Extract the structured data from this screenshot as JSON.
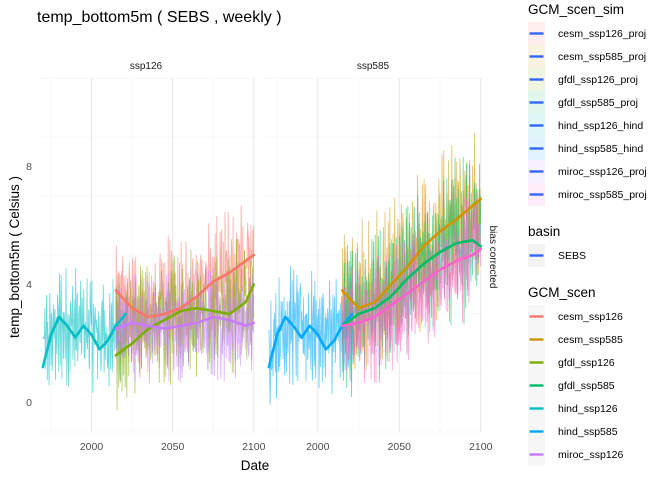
{
  "chart_data": {
    "type": "line",
    "title": "temp_bottom5m ( SEBS , weekly )",
    "xlabel": "Date",
    "ylabel": "temp_bottom5m ( Celsius )",
    "xlim": [
      1967,
      2102
    ],
    "ylim": [
      -1.0,
      11.0
    ],
    "x_ticks": [
      2000,
      2050,
      2100
    ],
    "y_ticks": [
      0,
      4,
      8
    ],
    "grid": true,
    "facet_row_label": "bias corrected",
    "panels": [
      {
        "label": "ssp126",
        "raw_series": [
          {
            "name": "hind_ssp126",
            "color": "#00BFC4",
            "x_range": [
              1970,
              2022
            ],
            "center": [
              [
                1970,
                1.8
              ],
              [
                1980,
                2.6
              ],
              [
                1990,
                2.6
              ],
              [
                2000,
                2.4
              ],
              [
                2010,
                2.3
              ],
              [
                2022,
                2.6
              ]
            ],
            "amp": 1.6
          },
          {
            "name": "cesm_ssp126",
            "color": "#F8766D",
            "x_range": [
              2015,
              2100
            ],
            "center": [
              [
                2015,
                3.3
              ],
              [
                2030,
                3.0
              ],
              [
                2050,
                3.4
              ],
              [
                2070,
                3.9
              ],
              [
                2085,
                4.3
              ],
              [
                2100,
                4.9
              ]
            ],
            "amp": 1.8
          },
          {
            "name": "gfdl_ssp126",
            "color": "#7CAE00",
            "x_range": [
              2015,
              2100
            ],
            "center": [
              [
                2015,
                2.0
              ],
              [
                2030,
                2.4
              ],
              [
                2050,
                2.9
              ],
              [
                2070,
                3.1
              ],
              [
                2085,
                3.2
              ],
              [
                2100,
                3.6
              ]
            ],
            "amp": 1.8
          },
          {
            "name": "miroc_ssp126",
            "color": "#C77CFF",
            "x_range": [
              2015,
              2100
            ],
            "center": [
              [
                2015,
                2.5
              ],
              [
                2030,
                2.5
              ],
              [
                2050,
                2.6
              ],
              [
                2070,
                2.7
              ],
              [
                2085,
                2.6
              ],
              [
                2100,
                2.6
              ]
            ],
            "amp": 1.5
          }
        ],
        "smooth_series": [
          {
            "name": "hind_ssp126",
            "color": "#00BFC4",
            "x": [
              1970,
              1975,
              1980,
              1985,
              1990,
              1995,
              2000,
              2005,
              2010,
              2015,
              2021
            ],
            "y": [
              1.2,
              2.3,
              2.9,
              2.6,
              2.2,
              2.6,
              2.3,
              1.8,
              2.1,
              2.6,
              3.0
            ]
          },
          {
            "name": "cesm_ssp126",
            "color": "#F8766D",
            "x": [
              2015,
              2025,
              2035,
              2045,
              2055,
              2065,
              2075,
              2085,
              2100
            ],
            "y": [
              3.8,
              3.2,
              2.9,
              3.0,
              3.2,
              3.6,
              4.1,
              4.4,
              5.0
            ]
          },
          {
            "name": "gfdl_ssp126",
            "color": "#7CAE00",
            "x": [
              2015,
              2025,
              2035,
              2045,
              2055,
              2065,
              2075,
              2085,
              2095,
              2100
            ],
            "y": [
              1.6,
              2.0,
              2.5,
              2.8,
              3.1,
              3.2,
              3.1,
              3.0,
              3.4,
              4.0
            ]
          },
          {
            "name": "miroc_ssp126",
            "color": "#C77CFF",
            "x": [
              2015,
              2025,
              2035,
              2045,
              2055,
              2065,
              2075,
              2085,
              2095,
              2100
            ],
            "y": [
              2.5,
              2.7,
              2.6,
              2.5,
              2.6,
              2.7,
              2.9,
              2.8,
              2.6,
              2.7
            ]
          }
        ]
      },
      {
        "label": "ssp585",
        "raw_series": [
          {
            "name": "hind_ssp585",
            "color": "#00A9FF",
            "x_range": [
              1970,
              2022
            ],
            "center": [
              [
                1970,
                1.8
              ],
              [
                1980,
                2.6
              ],
              [
                1990,
                2.6
              ],
              [
                2000,
                2.4
              ],
              [
                2010,
                2.3
              ],
              [
                2022,
                2.6
              ]
            ],
            "amp": 1.6
          },
          {
            "name": "cesm_ssp585",
            "color": "#CD9600",
            "x_range": [
              2015,
              2100
            ],
            "center": [
              [
                2015,
                3.4
              ],
              [
                2030,
                3.4
              ],
              [
                2050,
                4.4
              ],
              [
                2070,
                5.4
              ],
              [
                2085,
                6.2
              ],
              [
                2100,
                7.0
              ]
            ],
            "amp": 2.2
          },
          {
            "name": "gfdl_ssp585",
            "color": "#00BE67",
            "x_range": [
              2015,
              2100
            ],
            "center": [
              [
                2015,
                2.6
              ],
              [
                2030,
                3.0
              ],
              [
                2050,
                4.0
              ],
              [
                2070,
                5.0
              ],
              [
                2085,
                5.5
              ],
              [
                2100,
                5.4
              ]
            ],
            "amp": 2.2
          },
          {
            "name": "miroc_ssp585",
            "color": "#FF61CC",
            "x_range": [
              2015,
              2100
            ],
            "center": [
              [
                2015,
                2.7
              ],
              [
                2030,
                2.7
              ],
              [
                2050,
                3.2
              ],
              [
                2070,
                4.0
              ],
              [
                2085,
                4.6
              ],
              [
                2100,
                5.2
              ]
            ],
            "amp": 1.7
          }
        ],
        "smooth_series": [
          {
            "name": "hind_ssp585",
            "color": "#00A9FF",
            "x": [
              1970,
              1975,
              1980,
              1985,
              1990,
              1995,
              2000,
              2005,
              2010,
              2015,
              2021
            ],
            "y": [
              1.2,
              2.3,
              2.9,
              2.6,
              2.2,
              2.6,
              2.3,
              1.8,
              2.1,
              2.6,
              3.0
            ]
          },
          {
            "name": "cesm_ssp585",
            "color": "#CD9600",
            "x": [
              2015,
              2025,
              2035,
              2045,
              2055,
              2065,
              2075,
              2085,
              2100
            ],
            "y": [
              3.8,
              3.2,
              3.4,
              4.0,
              4.6,
              5.3,
              5.8,
              6.2,
              6.9
            ]
          },
          {
            "name": "gfdl_ssp585",
            "color": "#00BE67",
            "x": [
              2015,
              2025,
              2035,
              2045,
              2055,
              2065,
              2075,
              2085,
              2095,
              2100
            ],
            "y": [
              2.6,
              3.0,
              3.2,
              3.6,
              4.2,
              4.7,
              5.1,
              5.4,
              5.5,
              5.3
            ]
          },
          {
            "name": "miroc_ssp585",
            "color": "#FF61CC",
            "x": [
              2015,
              2025,
              2035,
              2045,
              2055,
              2065,
              2075,
              2085,
              2095,
              2100
            ],
            "y": [
              2.6,
              2.7,
              2.9,
              3.3,
              3.7,
              4.1,
              4.5,
              4.8,
              5.0,
              5.2
            ]
          }
        ]
      }
    ],
    "legends": [
      {
        "title": "GCM_scen_sim",
        "swatch_style": "blue-line",
        "entries": [
          {
            "label": "cesm_ssp126_proj",
            "fill": "#F8766D"
          },
          {
            "label": "cesm_ssp585_proj",
            "fill": "#CD9600"
          },
          {
            "label": "gfdl_ssp126_proj",
            "fill": "#7CAE00"
          },
          {
            "label": "gfdl_ssp585_proj",
            "fill": "#00BE67"
          },
          {
            "label": "hind_ssp126_hind",
            "fill": "#00BFC4"
          },
          {
            "label": "hind_ssp585_hind",
            "fill": "#00A9FF"
          },
          {
            "label": "miroc_ssp126_proj",
            "fill": "#C77CFF"
          },
          {
            "label": "miroc_ssp585_proj",
            "fill": "#FF61CC"
          }
        ]
      },
      {
        "title": "basin",
        "swatch_style": "blue-line",
        "entries": [
          {
            "label": "SEBS",
            "fill": "#EBEBEB"
          }
        ]
      },
      {
        "title": "GCM_scen",
        "swatch_style": "colored-line",
        "entries": [
          {
            "label": "cesm_ssp126",
            "color": "#F8766D"
          },
          {
            "label": "cesm_ssp585",
            "color": "#CD9600"
          },
          {
            "label": "gfdl_ssp126",
            "color": "#7CAE00"
          },
          {
            "label": "gfdl_ssp585",
            "color": "#00BE67"
          },
          {
            "label": "hind_ssp126",
            "color": "#00BFC4"
          },
          {
            "label": "hind_ssp585",
            "color": "#00A9FF"
          },
          {
            "label": "miroc_ssp126",
            "color": "#C77CFF"
          }
        ]
      }
    ]
  }
}
